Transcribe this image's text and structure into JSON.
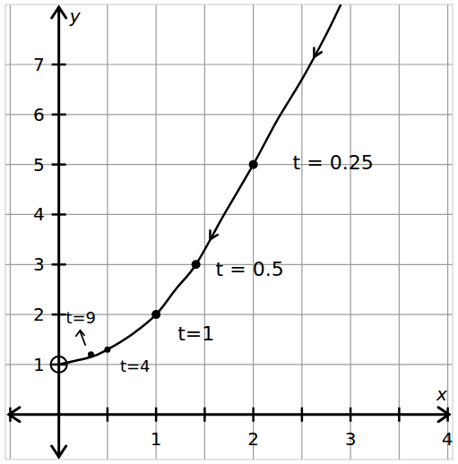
{
  "chart_data": {
    "type": "line",
    "x_label": "x",
    "y_label": "y",
    "x": [
      0,
      0.33,
      0.5,
      0.75,
      1,
      1.2,
      1.41,
      1.7,
      2,
      2.25,
      2.5,
      2.75,
      2.9
    ],
    "values": [
      1,
      1.15,
      1.3,
      1.6,
      2,
      2.5,
      3,
      4,
      5,
      5.9,
      6.7,
      7.6,
      8.2
    ],
    "color": "#000000",
    "xlim": [
      -0.55,
      4.05
    ],
    "ylim": [
      -0.9,
      8.2
    ],
    "xticks": [
      1,
      2,
      3,
      4
    ],
    "yticks": [
      1,
      2,
      3,
      4,
      5,
      6,
      7
    ],
    "x_minor_ticks": [
      -0.5,
      0.5,
      1.5,
      2.5,
      3.5
    ],
    "grid": true,
    "annotations": [
      {
        "text": "t = 0.25",
        "x": 2,
        "y": 5
      },
      {
        "text": "t = 0.5",
        "x": 1.41,
        "y": 3
      },
      {
        "text": "t=1",
        "x": 1,
        "y": 2
      },
      {
        "text": "t=4",
        "x": 0.5,
        "y": 1.3
      },
      {
        "text": "t=9",
        "x": 0.33,
        "y": 1.2
      }
    ]
  }
}
